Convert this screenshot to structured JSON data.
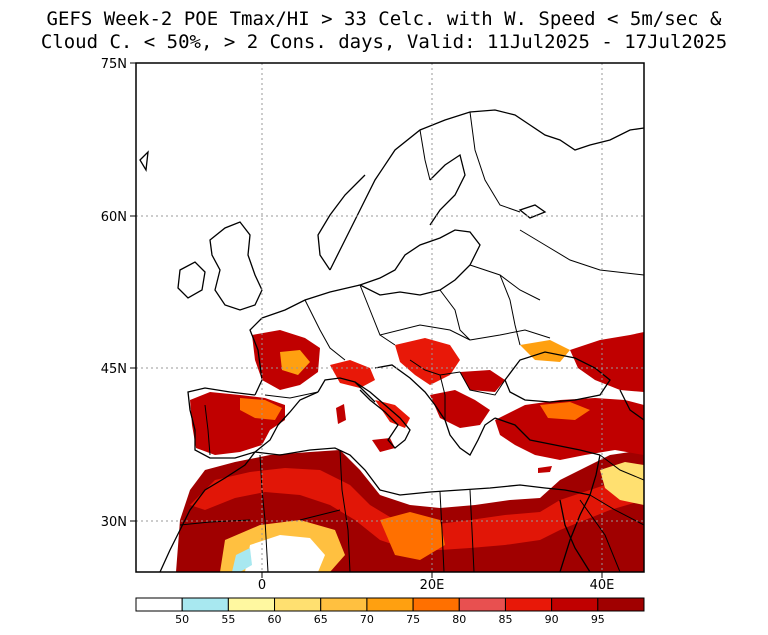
{
  "title": {
    "line1": "GEFS Week-2 POE Tmax/HI > 33 Celc. with W. Speed < 5m/sec &",
    "line2": "Cloud C. < 50%, > 2 Cons. days, Valid: 11Jul2025 - 17Jul2025"
  },
  "axes": {
    "lat_labels": [
      {
        "lat": 75,
        "text": "75N"
      },
      {
        "lat": 60,
        "text": "60N"
      },
      {
        "lat": 45,
        "text": "45N"
      },
      {
        "lat": 30,
        "text": "30N"
      }
    ],
    "lon_labels": [
      {
        "lon": 0,
        "text": "0"
      },
      {
        "lon": 20,
        "text": "20E"
      },
      {
        "lon": 40,
        "text": "40E"
      }
    ],
    "lon_range": [
      -15,
      45
    ],
    "lat_range": [
      25,
      75
    ]
  },
  "colorbar": {
    "colors": [
      "#ffffff",
      "#a8e8f0",
      "#fff8a0",
      "#ffe070",
      "#ffc040",
      "#ffa010",
      "#ff7000",
      "#e85050",
      "#e81808",
      "#c00000",
      "#a00000"
    ],
    "labels": [
      "50",
      "55",
      "60",
      "65",
      "70",
      "75",
      "80",
      "85",
      "90",
      "95"
    ]
  },
  "colors": {
    "land": "#ffffff",
    "frame": "#000000",
    "grid": "#999999"
  }
}
